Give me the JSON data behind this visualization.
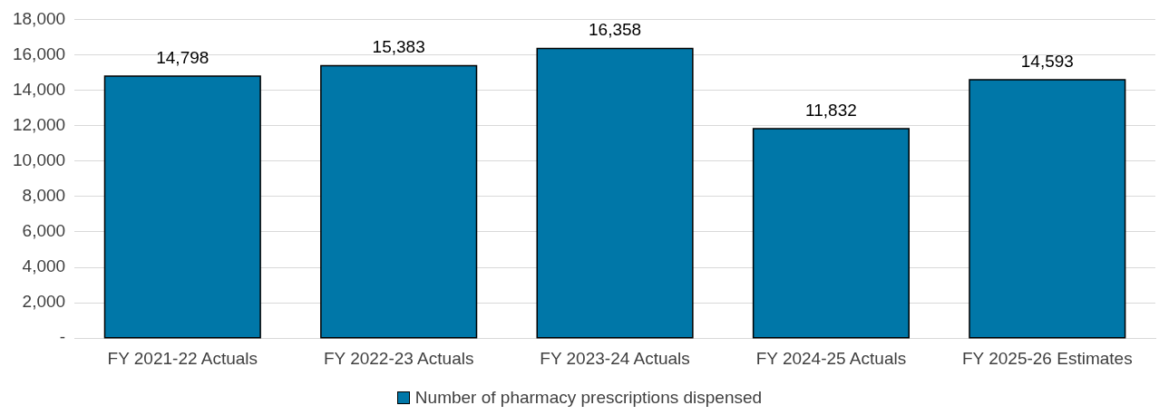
{
  "chart_data": {
    "type": "bar",
    "categories": [
      "FY 2021-22 Actuals",
      "FY 2022-23 Actuals",
      "FY 2023-24 Actuals",
      "FY 2024-25 Actuals",
      "FY 2025-26 Estimates"
    ],
    "series": [
      {
        "name": "Number of pharmacy prescriptions dispensed",
        "color": "#0077a8",
        "values": [
          14798,
          15383,
          16358,
          11832,
          14593
        ],
        "value_labels": [
          "14,798",
          "15,383",
          "16,358",
          "11,832",
          "14,593"
        ]
      }
    ],
    "ylim": [
      0,
      18000
    ],
    "yticks": [
      {
        "value": 0,
        "label": "-"
      },
      {
        "value": 2000,
        "label": "2,000"
      },
      {
        "value": 4000,
        "label": "4,000"
      },
      {
        "value": 6000,
        "label": "6,000"
      },
      {
        "value": 8000,
        "label": "8,000"
      },
      {
        "value": 10000,
        "label": "10,000"
      },
      {
        "value": 12000,
        "label": "12,000"
      },
      {
        "value": 14000,
        "label": "14,000"
      },
      {
        "value": 16000,
        "label": "16,000"
      },
      {
        "value": 18000,
        "label": "18,000"
      }
    ],
    "grid": "y",
    "legend": "bottom"
  }
}
